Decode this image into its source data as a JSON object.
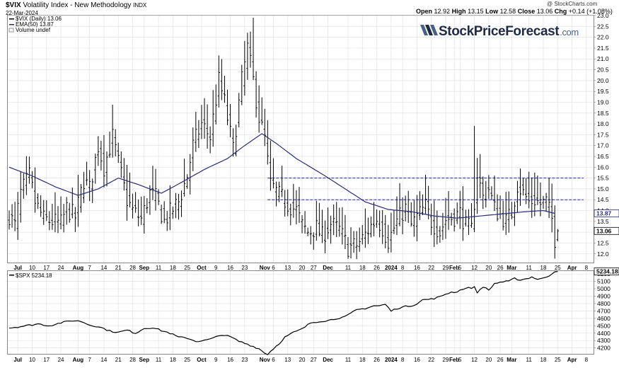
{
  "header": {
    "symbol": "$VIX",
    "title_rest": "Volatility Index - New Methodology",
    "exchange": "INDX",
    "date": "22-Mar-2024",
    "credit": "@ StockCharts.com",
    "quote": {
      "open_label": "Open",
      "open": "12.92",
      "high_label": "High",
      "high": "13.15",
      "low_label": "Low",
      "low": "12.58",
      "close_label": "Close",
      "close": "13.06",
      "chg_label": "Chg",
      "chg": "+0.14 (+1.08%)"
    }
  },
  "legend": {
    "vix": "$VIX (Daily) 13.06",
    "ema": "EMA(50) 13.87",
    "volume": "Volume undef",
    "spx": "$SPX 5234.18"
  },
  "logo": {
    "brand": "StockPriceForecast",
    "suffix": ".com"
  },
  "colors": {
    "price_bar": "#000000",
    "ema_line": "#2b2b7a",
    "resistance": "#1a1acc",
    "grid": "#e2e2e2",
    "spx_line": "#000000",
    "logo_dark": "#1f2a44",
    "logo_accent": "#4a5f86"
  },
  "chart_data": [
    {
      "type": "ohlc",
      "name": "VIX daily with EMA(50)",
      "ylim": [
        11.6,
        23.0
      ],
      "yticks": [
        12.0,
        12.5,
        13.0,
        13.5,
        14.0,
        14.5,
        15.0,
        15.5,
        16.0,
        16.5,
        17.0,
        17.5,
        18.0,
        18.5,
        19.0,
        19.5,
        20.0,
        20.5,
        21.0,
        21.5,
        22.0,
        22.5,
        23.0
      ],
      "last_close_label": "13.06",
      "ema_last_label": "13.87",
      "x_ticks": [
        {
          "label": "Jul",
          "major": true,
          "i": 3
        },
        {
          "label": "10",
          "major": false,
          "i": 8
        },
        {
          "label": "17",
          "major": false,
          "i": 13
        },
        {
          "label": "24",
          "major": false,
          "i": 18
        },
        {
          "label": "Aug",
          "major": true,
          "i": 24
        },
        {
          "label": "7",
          "major": false,
          "i": 28
        },
        {
          "label": "14",
          "major": false,
          "i": 33
        },
        {
          "label": "21",
          "major": false,
          "i": 38
        },
        {
          "label": "28",
          "major": false,
          "i": 43
        },
        {
          "label": "Sep",
          "major": true,
          "i": 47
        },
        {
          "label": "11",
          "major": false,
          "i": 52
        },
        {
          "label": "18",
          "major": false,
          "i": 57
        },
        {
          "label": "25",
          "major": false,
          "i": 62
        },
        {
          "label": "Oct",
          "major": true,
          "i": 67
        },
        {
          "label": "9",
          "major": false,
          "i": 72
        },
        {
          "label": "16",
          "major": false,
          "i": 77
        },
        {
          "label": "23",
          "major": false,
          "i": 82
        },
        {
          "label": "Nov",
          "major": true,
          "i": 89
        },
        {
          "label": "6",
          "major": false,
          "i": 92
        },
        {
          "label": "13",
          "major": false,
          "i": 97
        },
        {
          "label": "20",
          "major": false,
          "i": 102
        },
        {
          "label": "27",
          "major": false,
          "i": 106
        },
        {
          "label": "Dec",
          "major": true,
          "i": 111
        },
        {
          "label": "11",
          "major": false,
          "i": 118
        },
        {
          "label": "18",
          "major": false,
          "i": 123
        },
        {
          "label": "26",
          "major": false,
          "i": 128
        },
        {
          "label": "2024",
          "major": true,
          "i": 133
        },
        {
          "label": "8",
          "major": false,
          "i": 137
        },
        {
          "label": "16",
          "major": false,
          "i": 142
        },
        {
          "label": "22",
          "major": false,
          "i": 147
        },
        {
          "label": "29",
          "major": false,
          "i": 152
        },
        {
          "label": "Feb",
          "major": true,
          "i": 155
        },
        {
          "label": "5",
          "major": false,
          "i": 157
        },
        {
          "label": "12",
          "major": false,
          "i": 162
        },
        {
          "label": "20",
          "major": false,
          "i": 167
        },
        {
          "label": "26",
          "major": false,
          "i": 171
        },
        {
          "label": "Mar",
          "major": true,
          "i": 175
        },
        {
          "label": "11",
          "major": false,
          "i": 181
        },
        {
          "label": "18",
          "major": false,
          "i": 186
        },
        {
          "label": "25",
          "major": false,
          "i": 191
        },
        {
          "label": "Apr",
          "major": true,
          "i": 196
        },
        {
          "label": "8",
          "major": false,
          "i": 201
        }
      ],
      "resistance_levels": [
        {
          "y": 15.5,
          "from": 90,
          "to": 200
        },
        {
          "y": 14.5,
          "from": 90,
          "to": 200
        }
      ],
      "ema_keypoints": [
        [
          0,
          16.0
        ],
        [
          8,
          15.6
        ],
        [
          16,
          15.1
        ],
        [
          24,
          14.7
        ],
        [
          31,
          15.0
        ],
        [
          38,
          15.5
        ],
        [
          45,
          15.2
        ],
        [
          53,
          14.8
        ],
        [
          60,
          15.3
        ],
        [
          68,
          15.9
        ],
        [
          76,
          16.4
        ],
        [
          82,
          17.0
        ],
        [
          88,
          17.55
        ],
        [
          93,
          17.1
        ],
        [
          100,
          16.4
        ],
        [
          110,
          15.6
        ],
        [
          117,
          15.0
        ],
        [
          124,
          14.4
        ],
        [
          132,
          14.05
        ],
        [
          140,
          13.95
        ],
        [
          148,
          13.75
        ],
        [
          156,
          13.65
        ],
        [
          164,
          13.75
        ],
        [
          172,
          13.85
        ],
        [
          180,
          13.95
        ],
        [
          186,
          14.0
        ],
        [
          190,
          13.87
        ]
      ],
      "close_keypoints": [
        [
          0,
          13.8
        ],
        [
          2,
          13.3
        ],
        [
          4,
          14.8
        ],
        [
          7,
          15.6
        ],
        [
          9,
          14.4
        ],
        [
          12,
          13.6
        ],
        [
          15,
          13.5
        ],
        [
          18,
          13.4
        ],
        [
          20,
          14.1
        ],
        [
          23,
          13.7
        ],
        [
          26,
          15.4
        ],
        [
          28,
          15.0
        ],
        [
          31,
          17.0
        ],
        [
          33,
          16.0
        ],
        [
          36,
          17.4
        ],
        [
          38,
          16.2
        ],
        [
          41,
          14.5
        ],
        [
          43,
          14.0
        ],
        [
          46,
          13.6
        ],
        [
          49,
          14.8
        ],
        [
          51,
          14.6
        ],
        [
          54,
          13.5
        ],
        [
          56,
          13.9
        ],
        [
          59,
          14.4
        ],
        [
          62,
          15.6
        ],
        [
          64,
          17.0
        ],
        [
          67,
          18.0
        ],
        [
          70,
          17.4
        ],
        [
          73,
          20.0
        ],
        [
          75,
          19.0
        ],
        [
          78,
          16.8
        ],
        [
          81,
          20.0
        ],
        [
          83,
          21.5
        ],
        [
          85,
          20.0
        ],
        [
          87,
          18.3
        ],
        [
          89,
          17.3
        ],
        [
          91,
          15.2
        ],
        [
          94,
          14.7
        ],
        [
          97,
          14.3
        ],
        [
          100,
          14.0
        ],
        [
          102,
          13.3
        ],
        [
          104,
          13.0
        ],
        [
          107,
          13.2
        ],
        [
          109,
          12.8
        ],
        [
          112,
          13.4
        ],
        [
          115,
          13.1
        ],
        [
          118,
          12.3
        ],
        [
          121,
          12.4
        ],
        [
          123,
          12.7
        ],
        [
          126,
          13.3
        ],
        [
          128,
          13.6
        ],
        [
          130,
          13.2
        ],
        [
          132,
          12.6
        ],
        [
          135,
          13.5
        ],
        [
          138,
          14.1
        ],
        [
          140,
          13.3
        ],
        [
          142,
          13.7
        ],
        [
          145,
          14.2
        ],
        [
          147,
          13.5
        ],
        [
          150,
          13.0
        ],
        [
          152,
          13.6
        ],
        [
          155,
          13.7
        ],
        [
          157,
          13.9
        ],
        [
          159,
          13.3
        ],
        [
          161,
          13.1
        ],
        [
          163,
          15.7
        ],
        [
          165,
          14.6
        ],
        [
          167,
          15.0
        ],
        [
          169,
          14.1
        ],
        [
          171,
          13.8
        ],
        [
          173,
          13.5
        ],
        [
          175,
          13.9
        ],
        [
          177,
          15.2
        ],
        [
          179,
          14.8
        ],
        [
          181,
          14.4
        ],
        [
          183,
          14.5
        ],
        [
          185,
          14.3
        ],
        [
          187,
          14.4
        ],
        [
          189,
          13.6
        ],
        [
          190,
          12.7
        ],
        [
          191,
          13.06
        ]
      ],
      "bar_count": 192
    },
    {
      "type": "line",
      "name": "SPX",
      "ylim": [
        4120,
        5240
      ],
      "yticks": [
        4200,
        4300,
        4400,
        4500,
        4600,
        4700,
        4800,
        4900,
        5000,
        5100,
        5200
      ],
      "last_label": "5234.18",
      "keypoints": [
        [
          0,
          4470
        ],
        [
          5,
          4495
        ],
        [
          10,
          4525
        ],
        [
          14,
          4500
        ],
        [
          18,
          4540
        ],
        [
          22,
          4570
        ],
        [
          25,
          4560
        ],
        [
          28,
          4510
        ],
        [
          31,
          4490
        ],
        [
          35,
          4430
        ],
        [
          38,
          4410
        ],
        [
          41,
          4440
        ],
        [
          44,
          4400
        ],
        [
          47,
          4465
        ],
        [
          50,
          4475
        ],
        [
          53,
          4435
        ],
        [
          56,
          4400
        ],
        [
          59,
          4345
        ],
        [
          62,
          4335
        ],
        [
          65,
          4290
        ],
        [
          68,
          4300
        ],
        [
          71,
          4330
        ],
        [
          74,
          4380
        ],
        [
          77,
          4350
        ],
        [
          80,
          4290
        ],
        [
          83,
          4250
        ],
        [
          85,
          4220
        ],
        [
          87,
          4190
        ],
        [
          89,
          4130
        ],
        [
          90,
          4117
        ],
        [
          92,
          4190
        ],
        [
          94,
          4260
        ],
        [
          96,
          4345
        ],
        [
          99,
          4410
        ],
        [
          102,
          4455
        ],
        [
          105,
          4540
        ],
        [
          108,
          4560
        ],
        [
          111,
          4570
        ],
        [
          114,
          4600
        ],
        [
          117,
          4620
        ],
        [
          121,
          4715
        ],
        [
          124,
          4735
        ],
        [
          127,
          4770
        ],
        [
          129,
          4770
        ],
        [
          131,
          4790
        ],
        [
          133,
          4700
        ],
        [
          135,
          4735
        ],
        [
          138,
          4760
        ],
        [
          141,
          4780
        ],
        [
          144,
          4850
        ],
        [
          147,
          4860
        ],
        [
          150,
          4890
        ],
        [
          152,
          4930
        ],
        [
          154,
          4955
        ],
        [
          156,
          4960
        ],
        [
          158,
          5000
        ],
        [
          160,
          5010
        ],
        [
          162,
          5020
        ],
        [
          163,
          4950
        ],
        [
          165,
          5030
        ],
        [
          167,
          4980
        ],
        [
          169,
          5070
        ],
        [
          171,
          5090
        ],
        [
          174,
          5100
        ],
        [
          176,
          5140
        ],
        [
          178,
          5120
        ],
        [
          180,
          5135
        ],
        [
          182,
          5160
        ],
        [
          184,
          5130
        ],
        [
          186,
          5140
        ],
        [
          188,
          5180
        ],
        [
          190,
          5235
        ],
        [
          191,
          5234
        ]
      ]
    }
  ]
}
